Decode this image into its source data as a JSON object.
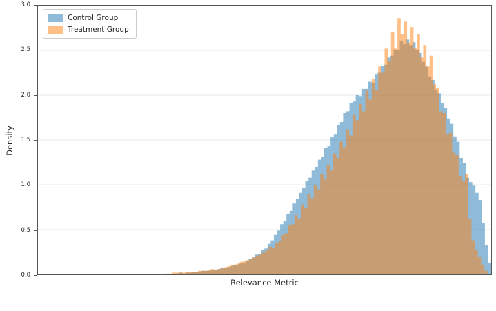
{
  "chart_data": {
    "type": "histogram",
    "title": "",
    "xlabel": "Relevance Metric",
    "ylabel": "Density",
    "ylim": [
      0,
      3.0
    ],
    "yticks": [
      "0.0",
      "0.5",
      "1.0",
      "1.5",
      "2.0",
      "2.5",
      "3.0"
    ],
    "xticks": [],
    "grid": "horizontal",
    "gridline_color": "#f0f0f0",
    "spine_color": "#555555",
    "overlap_color_rendered": "#c79d73",
    "bar_alpha": 0.5,
    "legend_position": "upper-left",
    "series": [
      {
        "name": "Control Group",
        "color": "#1f77b4",
        "frac_start": 0.305,
        "frac_end": 1.0,
        "peak_density": 2.62,
        "heights": [
          0.01,
          0.02,
          0.01,
          0.02,
          0.02,
          0.03,
          0.03,
          0.03,
          0.04,
          0.04,
          0.04,
          0.05,
          0.05,
          0.06,
          0.07,
          0.07,
          0.08,
          0.09,
          0.1,
          0.11,
          0.12,
          0.13,
          0.15,
          0.17,
          0.19,
          0.22,
          0.23,
          0.27,
          0.29,
          0.34,
          0.38,
          0.44,
          0.49,
          0.56,
          0.6,
          0.67,
          0.71,
          0.79,
          0.84,
          0.91,
          0.97,
          1.04,
          1.08,
          1.16,
          1.2,
          1.28,
          1.31,
          1.41,
          1.43,
          1.53,
          1.56,
          1.67,
          1.7,
          1.8,
          1.82,
          1.91,
          1.93,
          2.0,
          1.99,
          2.07,
          2.07,
          2.15,
          2.14,
          2.23,
          2.25,
          2.33,
          2.34,
          2.42,
          2.44,
          2.51,
          2.5,
          2.6,
          2.57,
          2.62,
          2.56,
          2.59,
          2.51,
          2.47,
          2.37,
          2.32,
          2.21,
          2.17,
          2.06,
          2.02,
          1.91,
          1.86,
          1.74,
          1.68,
          1.54,
          1.48,
          1.3,
          1.24,
          1.08,
          1.03,
          0.99,
          0.91,
          0.83,
          0.57,
          0.33,
          0.13
        ]
      },
      {
        "name": "Treatment Group",
        "color": "#ff7f0e",
        "frac_start": 0.282,
        "frac_end": 0.992,
        "peak_density": 2.86,
        "heights": [
          0.01,
          0.01,
          0.02,
          0.02,
          0.02,
          0.02,
          0.03,
          0.03,
          0.03,
          0.03,
          0.04,
          0.04,
          0.04,
          0.05,
          0.06,
          0.05,
          0.06,
          0.07,
          0.08,
          0.09,
          0.1,
          0.11,
          0.12,
          0.14,
          0.15,
          0.16,
          0.17,
          0.19,
          0.21,
          0.22,
          0.25,
          0.27,
          0.31,
          0.3,
          0.35,
          0.37,
          0.44,
          0.46,
          0.55,
          0.56,
          0.66,
          0.62,
          0.78,
          0.74,
          0.9,
          0.85,
          1.0,
          0.95,
          1.12,
          1.06,
          1.22,
          1.16,
          1.35,
          1.3,
          1.48,
          1.42,
          1.62,
          1.55,
          1.78,
          1.72,
          1.9,
          1.82,
          2.05,
          1.95,
          2.18,
          2.06,
          2.32,
          2.25,
          2.52,
          2.38,
          2.7,
          2.52,
          2.86,
          2.68,
          2.82,
          2.58,
          2.76,
          2.52,
          2.68,
          2.42,
          2.56,
          2.32,
          2.44,
          2.12,
          2.08,
          1.82,
          1.8,
          1.56,
          1.58,
          1.36,
          1.33,
          1.1,
          1.04,
          1.12,
          0.62,
          0.38,
          0.27,
          0.2,
          0.11,
          0.04
        ]
      }
    ]
  }
}
